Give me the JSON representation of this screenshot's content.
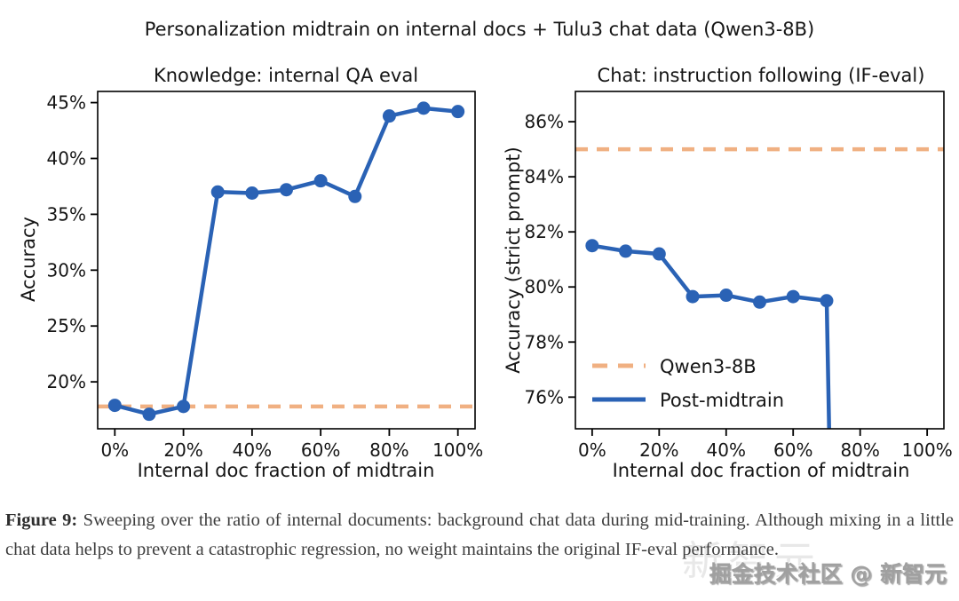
{
  "figure_title": "Personalization midtrain on internal docs + Tulu3 chat data (Qwen3-8B)",
  "colors": {
    "line_blue": "#2a62b5",
    "dash_orange": "#f0b082",
    "axis": "#000000",
    "tick_text": "#151515"
  },
  "chart_data": [
    {
      "type": "line",
      "title": "Knowledge: internal QA eval",
      "xlabel": "Internal doc fraction of midtrain",
      "ylabel": "Accuracy",
      "xlim": [
        -5,
        105
      ],
      "ylim": [
        15.8,
        46.0
      ],
      "grid": false,
      "x_ticks": [
        "0%",
        "20%",
        "40%",
        "60%",
        "80%",
        "100%"
      ],
      "x_tick_values": [
        0,
        20,
        40,
        60,
        80,
        100
      ],
      "y_ticks": [
        "20%",
        "25%",
        "30%",
        "35%",
        "40%",
        "45%"
      ],
      "y_tick_values": [
        20,
        25,
        30,
        35,
        40,
        45
      ],
      "baseline": {
        "name": "Qwen3-8B",
        "value": 17.8,
        "style": "dashed-orange"
      },
      "series": [
        {
          "name": "Post-midtrain",
          "x": [
            0,
            10,
            20,
            30,
            40,
            50,
            60,
            70,
            80,
            90,
            100
          ],
          "y": [
            17.9,
            17.1,
            17.8,
            37.0,
            36.9,
            37.2,
            38.0,
            36.6,
            43.8,
            44.5,
            44.2
          ],
          "drops_below_axis_after_last_point": false
        }
      ]
    },
    {
      "type": "line",
      "title": "Chat: instruction following (IF-eval)",
      "xlabel": "Internal doc fraction of midtrain",
      "ylabel": "Accuracy (strict prompt)",
      "xlim": [
        -5,
        105
      ],
      "ylim": [
        74.85,
        87.1
      ],
      "grid": false,
      "x_ticks": [
        "0%",
        "20%",
        "40%",
        "60%",
        "80%",
        "100%"
      ],
      "x_tick_values": [
        0,
        20,
        40,
        60,
        80,
        100
      ],
      "y_ticks": [
        "76%",
        "78%",
        "80%",
        "82%",
        "84%",
        "86%"
      ],
      "y_tick_values": [
        76,
        78,
        80,
        82,
        84,
        86
      ],
      "baseline": {
        "name": "Qwen3-8B",
        "value": 85.0,
        "style": "dashed-orange"
      },
      "series": [
        {
          "name": "Post-midtrain",
          "x": [
            0,
            10,
            20,
            30,
            40,
            50,
            60,
            70
          ],
          "y": [
            81.5,
            81.3,
            81.2,
            79.65,
            79.7,
            79.45,
            79.65,
            79.5
          ],
          "drops_below_axis_after_last_point": true
        }
      ],
      "legend": {
        "position": "lower left",
        "entries": [
          {
            "label": "Qwen3-8B",
            "style": "dashed"
          },
          {
            "label": "Post-midtrain",
            "style": "solid"
          }
        ]
      }
    }
  ],
  "caption": {
    "label": "Figure 9:",
    "text": "Sweeping over the ratio of internal documents: background chat data during mid-training. Although mixing in a little chat data helps to prevent a catastrophic regression, no weight maintains the original IF-eval performance."
  },
  "watermark": {
    "text": "掘金技术社区 @ 新智元",
    "ghost_text": "新智元"
  }
}
